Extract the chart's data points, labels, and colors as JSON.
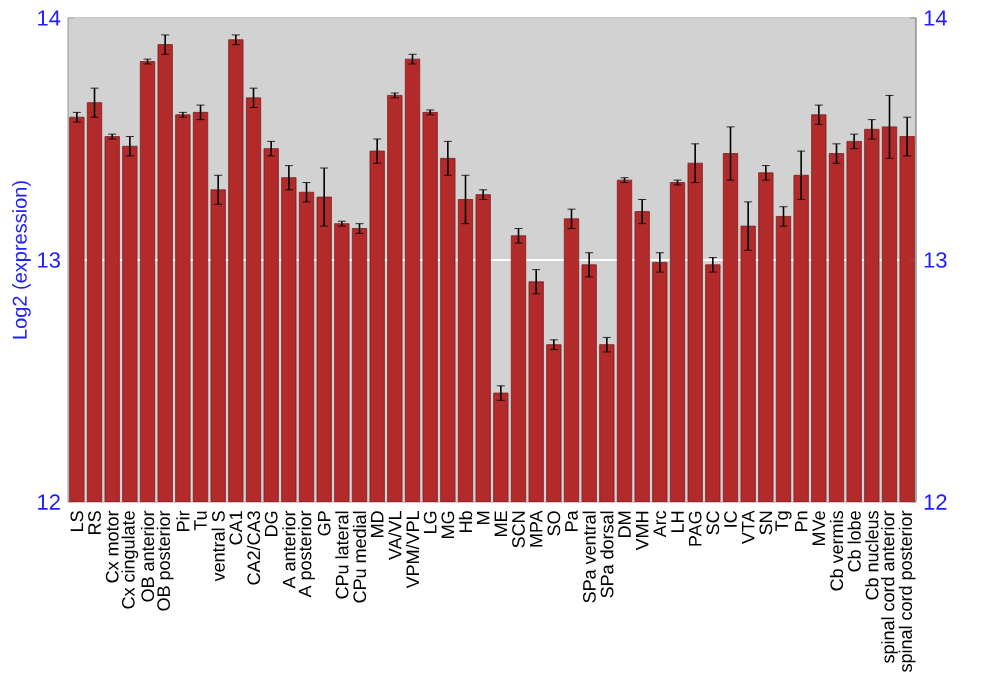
{
  "chart_data": {
    "type": "bar",
    "ylabel": "Log2 (expression)",
    "categories": [
      "LS",
      "RS",
      "Cx motor",
      "Cx cingulate",
      "OB anterior",
      "OB posterior",
      "Pir",
      "Tu",
      "ventral S",
      "CA1",
      "CA2/CA3",
      "DG",
      "A anterior",
      "A posterior",
      "GP",
      "CPu lateral",
      "CPu medial",
      "MD",
      "VA/VL",
      "VPM/VPL",
      "LG",
      "MG",
      "Hb",
      "M",
      "ME",
      "SCN",
      "MPA",
      "SO",
      "Pa",
      "SPa ventral",
      "SPa dorsal",
      "DM",
      "VMH",
      "Arc",
      "LH",
      "PAG",
      "SC",
      "IC",
      "VTA",
      "SN",
      "Tg",
      "Pn",
      "MVe",
      "Cb vermis",
      "Cb lobe",
      "Cb nucleus",
      "spinal cord anterior",
      "spinal cord posterior"
    ],
    "values": [
      13.59,
      13.65,
      13.51,
      13.47,
      13.82,
      13.89,
      13.6,
      13.61,
      13.29,
      13.91,
      13.67,
      13.46,
      13.34,
      13.28,
      13.26,
      13.15,
      13.13,
      13.45,
      13.68,
      13.83,
      13.61,
      13.42,
      13.25,
      13.27,
      12.45,
      13.1,
      12.91,
      12.65,
      13.17,
      12.98,
      12.65,
      13.33,
      13.2,
      12.99,
      13.32,
      13.4,
      12.98,
      13.44,
      13.14,
      13.36,
      13.18,
      13.35,
      13.6,
      13.44,
      13.49,
      13.54,
      13.55,
      13.51
    ],
    "errors": [
      0.02,
      0.06,
      0.01,
      0.04,
      0.01,
      0.04,
      0.01,
      0.03,
      0.06,
      0.02,
      0.04,
      0.03,
      0.05,
      0.04,
      0.12,
      0.01,
      0.02,
      0.05,
      0.01,
      0.02,
      0.01,
      0.07,
      0.1,
      0.02,
      0.03,
      0.03,
      0.05,
      0.02,
      0.04,
      0.05,
      0.03,
      0.01,
      0.05,
      0.04,
      0.01,
      0.08,
      0.03,
      0.11,
      0.1,
      0.03,
      0.04,
      0.1,
      0.04,
      0.04,
      0.03,
      0.04,
      0.13,
      0.08
    ],
    "color": "#b22a2a",
    "ylim": [
      12,
      14
    ],
    "yticks": [
      12,
      13,
      14
    ],
    "y2lim": [
      12,
      14
    ],
    "y2ticks": [
      12,
      13,
      14
    ],
    "grid": "y"
  }
}
